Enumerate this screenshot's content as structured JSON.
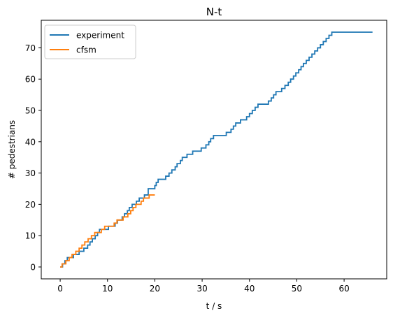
{
  "chart_data": {
    "type": "line",
    "title": "N-t",
    "xlabel": "t / s",
    "ylabel": "# pedestrians",
    "xlim": [
      -4,
      69
    ],
    "ylim": [
      -3.8,
      78.8
    ],
    "xticks": [
      0,
      10,
      20,
      30,
      40,
      50,
      60
    ],
    "yticks": [
      0,
      10,
      20,
      30,
      40,
      50,
      60,
      70
    ],
    "grid": false,
    "legend_position": "top-left",
    "series": [
      {
        "name": "experiment",
        "color": "#1f77b4",
        "step": true,
        "x": [
          0,
          0.5,
          1,
          1.5,
          2,
          2.8,
          3.5,
          4,
          4.5,
          5,
          5.8,
          6.3,
          6.8,
          7.4,
          7.9,
          8.3,
          8.7,
          9.6,
          10.2,
          10.6,
          11.2,
          11.6,
          12.1,
          12.6,
          13.1,
          13.6,
          14.2,
          14.6,
          15.2,
          15.6,
          16.1,
          16.7,
          17.3,
          17.8,
          18.6,
          20,
          20.3,
          20.7,
          21.4,
          22.3,
          23,
          23.6,
          24.3,
          24.7,
          25.4,
          25.8,
          26.4,
          26.8,
          28,
          29.2,
          29.8,
          30.4,
          30.8,
          31.4,
          31.8,
          32.4,
          34.6,
          35.1,
          35.6,
          36.1,
          36.6,
          37.1,
          37.6,
          38.1,
          38.7,
          39.4,
          40,
          40.6,
          41.2,
          41.8,
          42.4,
          44,
          44.6,
          45.1,
          45.6,
          46.2,
          46.8,
          47.5,
          48.2,
          48.7,
          49.3,
          49.8,
          50.4,
          50.9,
          51.4,
          52,
          52.6,
          53.2,
          53.8,
          54.4,
          55,
          55.6,
          56.2,
          56.8,
          57.4,
          58,
          58.6,
          59.2,
          59.8,
          60.4,
          61,
          61.6,
          62.2,
          62.8,
          63.4,
          64,
          65.2,
          66
        ],
        "y": [
          0,
          1,
          2,
          3,
          3,
          4,
          4,
          5,
          5,
          6,
          7,
          8,
          9,
          10,
          11,
          12,
          12,
          12,
          13,
          13,
          13,
          14,
          15,
          15,
          16,
          17,
          18,
          19,
          20,
          20,
          21,
          22,
          22,
          23,
          25,
          26,
          27,
          28,
          28,
          29,
          30,
          31,
          32,
          33,
          34,
          35,
          35,
          36,
          37,
          37,
          38,
          38,
          39,
          40,
          41,
          42,
          42,
          43,
          43,
          44,
          45,
          46,
          46,
          47,
          47,
          48,
          49,
          50,
          51,
          52,
          52,
          53,
          54,
          55,
          56,
          56,
          57,
          58,
          59,
          60,
          61,
          62,
          63,
          64,
          65,
          66,
          67,
          68,
          69,
          70,
          71,
          72,
          73,
          74,
          75,
          75,
          75,
          75,
          75,
          75,
          75,
          75,
          75,
          75,
          75,
          75,
          75,
          75
        ]
      },
      {
        "name": "cfsm",
        "color": "#ff7f0e",
        "step": true,
        "x": [
          0,
          0.4,
          1.2,
          1.9,
          2.5,
          3.3,
          4,
          4.6,
          5.2,
          5.9,
          6.6,
          7.3,
          8,
          8.7,
          9.4,
          10.3,
          11.4,
          12,
          12.7,
          13.3,
          14.3,
          14.9,
          15.4,
          16,
          16.6,
          17.1,
          17.6,
          18.1,
          18.8,
          20
        ],
        "y": [
          0,
          1,
          2,
          3,
          4,
          5,
          6,
          7,
          8,
          9,
          10,
          11,
          11,
          12,
          13,
          13,
          14,
          15,
          15,
          16,
          17,
          18,
          19,
          20,
          20,
          21,
          22,
          22,
          23,
          23
        ]
      }
    ]
  }
}
